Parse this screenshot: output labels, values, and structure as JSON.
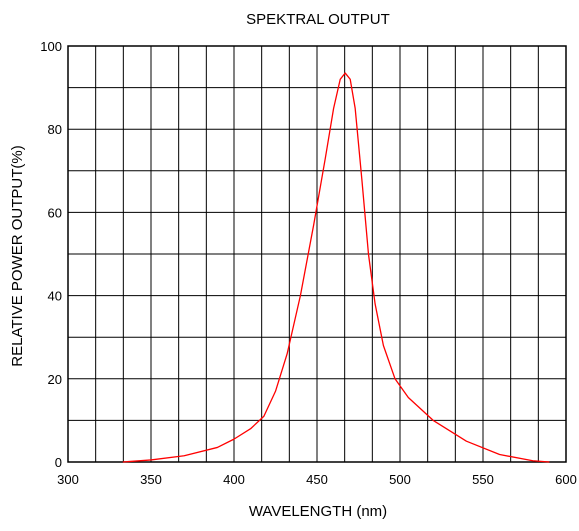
{
  "chart_data": {
    "type": "line",
    "title": "SPEKTRAL OUTPUT",
    "xlabel": "WAVELENGTH (nm)",
    "ylabel": "RELATIVE POWER OUTPUT(%)",
    "xlim": [
      300,
      600
    ],
    "ylim": [
      0,
      100
    ],
    "x_ticks": [
      300,
      350,
      400,
      450,
      500,
      550,
      600
    ],
    "y_ticks": [
      0,
      20,
      40,
      60,
      80,
      100
    ],
    "x_minor_step": 16.667,
    "y_minor_step": 10,
    "grid": true,
    "legend": "none",
    "series": [
      {
        "color": "#ff0000",
        "x": [
          333,
          350,
          370,
          390,
          400,
          410,
          418,
          425,
          432,
          440,
          448,
          455,
          460,
          464,
          467,
          470,
          473,
          477,
          481,
          485,
          490,
          497,
          505,
          520,
          540,
          560,
          580,
          590
        ],
        "y": [
          0,
          0.5,
          1.5,
          3.5,
          5.5,
          8,
          11,
          17,
          26,
          40,
          57,
          73,
          85,
          92,
          93.5,
          92,
          85,
          68,
          50,
          38,
          28,
          20,
          15.5,
          10,
          5,
          1.8,
          0.3,
          0
        ]
      }
    ]
  }
}
